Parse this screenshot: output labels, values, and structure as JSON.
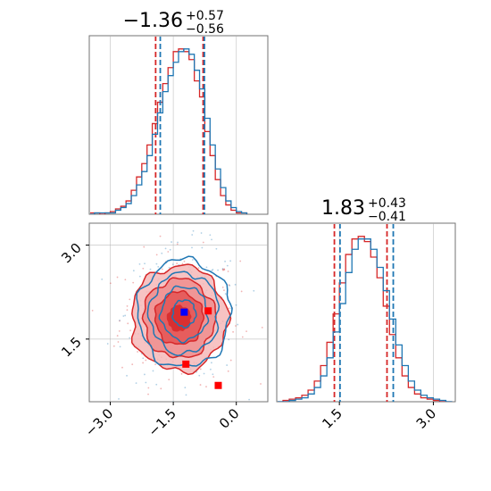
{
  "chart_data": [
    {
      "type": "histogram",
      "panel": "hist-param1",
      "title": {
        "value": "−1.36",
        "plus": "+0.57",
        "minus": "−0.56"
      },
      "xlim": [
        -3.5,
        0.75
      ],
      "series": [
        {
          "name": "",
          "color": "#d62728",
          "bin_edges": [
            -3.5,
            -3.375,
            -3.25,
            -3.125,
            -3.0,
            -2.875,
            -2.75,
            -2.625,
            -2.5,
            -2.375,
            -2.25,
            -2.125,
            -2.0,
            -1.875,
            -1.75,
            -1.625,
            -1.5,
            -1.375,
            -1.25,
            -1.125,
            -1.0,
            -0.875,
            -0.75,
            -0.625,
            -0.5,
            -0.375,
            -0.25,
            -0.125,
            0.0,
            0.125,
            0.25
          ],
          "counts": [
            1,
            1,
            0,
            1,
            2,
            4,
            6,
            10,
            18,
            28,
            38,
            52,
            68,
            84,
            98,
            110,
            122,
            124,
            122,
            116,
            100,
            88,
            62,
            44,
            26,
            14,
            7,
            3,
            1,
            1
          ],
          "quantiles": [
            -1.92,
            -1.36,
            -0.79
          ]
        },
        {
          "name": "",
          "color": "#1f77b4",
          "bin_edges": [
            -3.5,
            -3.375,
            -3.25,
            -3.125,
            -3.0,
            -2.875,
            -2.75,
            -2.625,
            -2.5,
            -2.375,
            -2.25,
            -2.125,
            -2.0,
            -1.875,
            -1.75,
            -1.625,
            -1.5,
            -1.375,
            -1.25,
            -1.125,
            -1.0,
            -0.875,
            -0.75,
            -0.625,
            -0.5,
            -0.375,
            -0.25,
            -0.125,
            0.0,
            0.125,
            0.25
          ],
          "counts": [
            0,
            1,
            1,
            1,
            1,
            3,
            5,
            8,
            14,
            22,
            32,
            44,
            60,
            76,
            92,
            104,
            114,
            122,
            124,
            120,
            108,
            94,
            72,
            52,
            34,
            20,
            10,
            5,
            2,
            1
          ],
          "quantiles": [
            -1.81,
            -1.24,
            -0.76
          ]
        }
      ]
    },
    {
      "type": "contour",
      "panel": "joint-param1-param2",
      "xlim": [
        -3.5,
        0.75
      ],
      "ylim": [
        0.5,
        3.35
      ],
      "xticks": [
        "−3.0",
        "−1.5",
        "0.0"
      ],
      "yticks": [
        "1.5",
        "3.0"
      ],
      "series": [
        {
          "name": "",
          "color": "#d62728",
          "center": [
            -1.36,
            1.83
          ],
          "sigma": [
            0.57,
            0.42
          ],
          "levels": [
            0.5,
            1.0,
            1.5,
            2.0
          ]
        },
        {
          "name": "",
          "color": "#1f77b4",
          "center": [
            -1.24,
            1.91
          ],
          "sigma": [
            0.55,
            0.43
          ],
          "levels": [
            0.5,
            1.0,
            1.5,
            2.0
          ]
        }
      ],
      "markers": [
        {
          "color": "#0000ff",
          "x": -1.24,
          "y": 1.93
        },
        {
          "color": "#ff0000",
          "x": -0.67,
          "y": 1.95
        },
        {
          "color": "#ff0000",
          "x": -1.2,
          "y": 1.1
        },
        {
          "color": "#ff0000",
          "x": -0.43,
          "y": 0.76
        }
      ]
    },
    {
      "type": "histogram",
      "panel": "hist-param2",
      "title": {
        "value": "1.83",
        "plus": "+0.43",
        "minus": "−0.41"
      },
      "xlim": [
        0.5,
        3.35
      ],
      "xticks": [
        "1.5",
        "3.0"
      ],
      "series": [
        {
          "name": "",
          "color": "#d62728",
          "bin_edges": [
            0.5,
            0.6,
            0.7,
            0.8,
            0.9,
            1.0,
            1.1,
            1.2,
            1.3,
            1.4,
            1.5,
            1.6,
            1.7,
            1.8,
            1.9,
            2.0,
            2.1,
            2.2,
            2.3,
            2.4,
            2.5,
            2.6,
            2.7,
            2.8,
            2.9,
            3.0,
            3.1,
            3.2,
            3.3
          ],
          "counts": [
            0,
            1,
            2,
            3,
            5,
            9,
            16,
            28,
            46,
            68,
            92,
            114,
            126,
            128,
            124,
            112,
            96,
            74,
            52,
            34,
            20,
            11,
            6,
            3,
            2,
            1,
            0,
            0
          ],
          "quantiles": [
            1.42,
            1.83,
            2.26
          ]
        },
        {
          "name": "",
          "color": "#1f77b4",
          "bin_edges": [
            0.5,
            0.6,
            0.7,
            0.8,
            0.9,
            1.0,
            1.1,
            1.2,
            1.3,
            1.4,
            1.5,
            1.6,
            1.7,
            1.8,
            1.9,
            2.0,
            2.1,
            2.2,
            2.3,
            2.4,
            2.5,
            2.6,
            2.7,
            2.8,
            2.9,
            3.0,
            3.1,
            3.2,
            3.3
          ],
          "counts": [
            0,
            0,
            1,
            2,
            3,
            6,
            11,
            20,
            34,
            54,
            76,
            100,
            118,
            126,
            126,
            118,
            104,
            86,
            64,
            44,
            28,
            16,
            9,
            5,
            3,
            2,
            1,
            0
          ],
          "quantiles": [
            1.51,
            1.92,
            2.36
          ]
        }
      ]
    }
  ]
}
